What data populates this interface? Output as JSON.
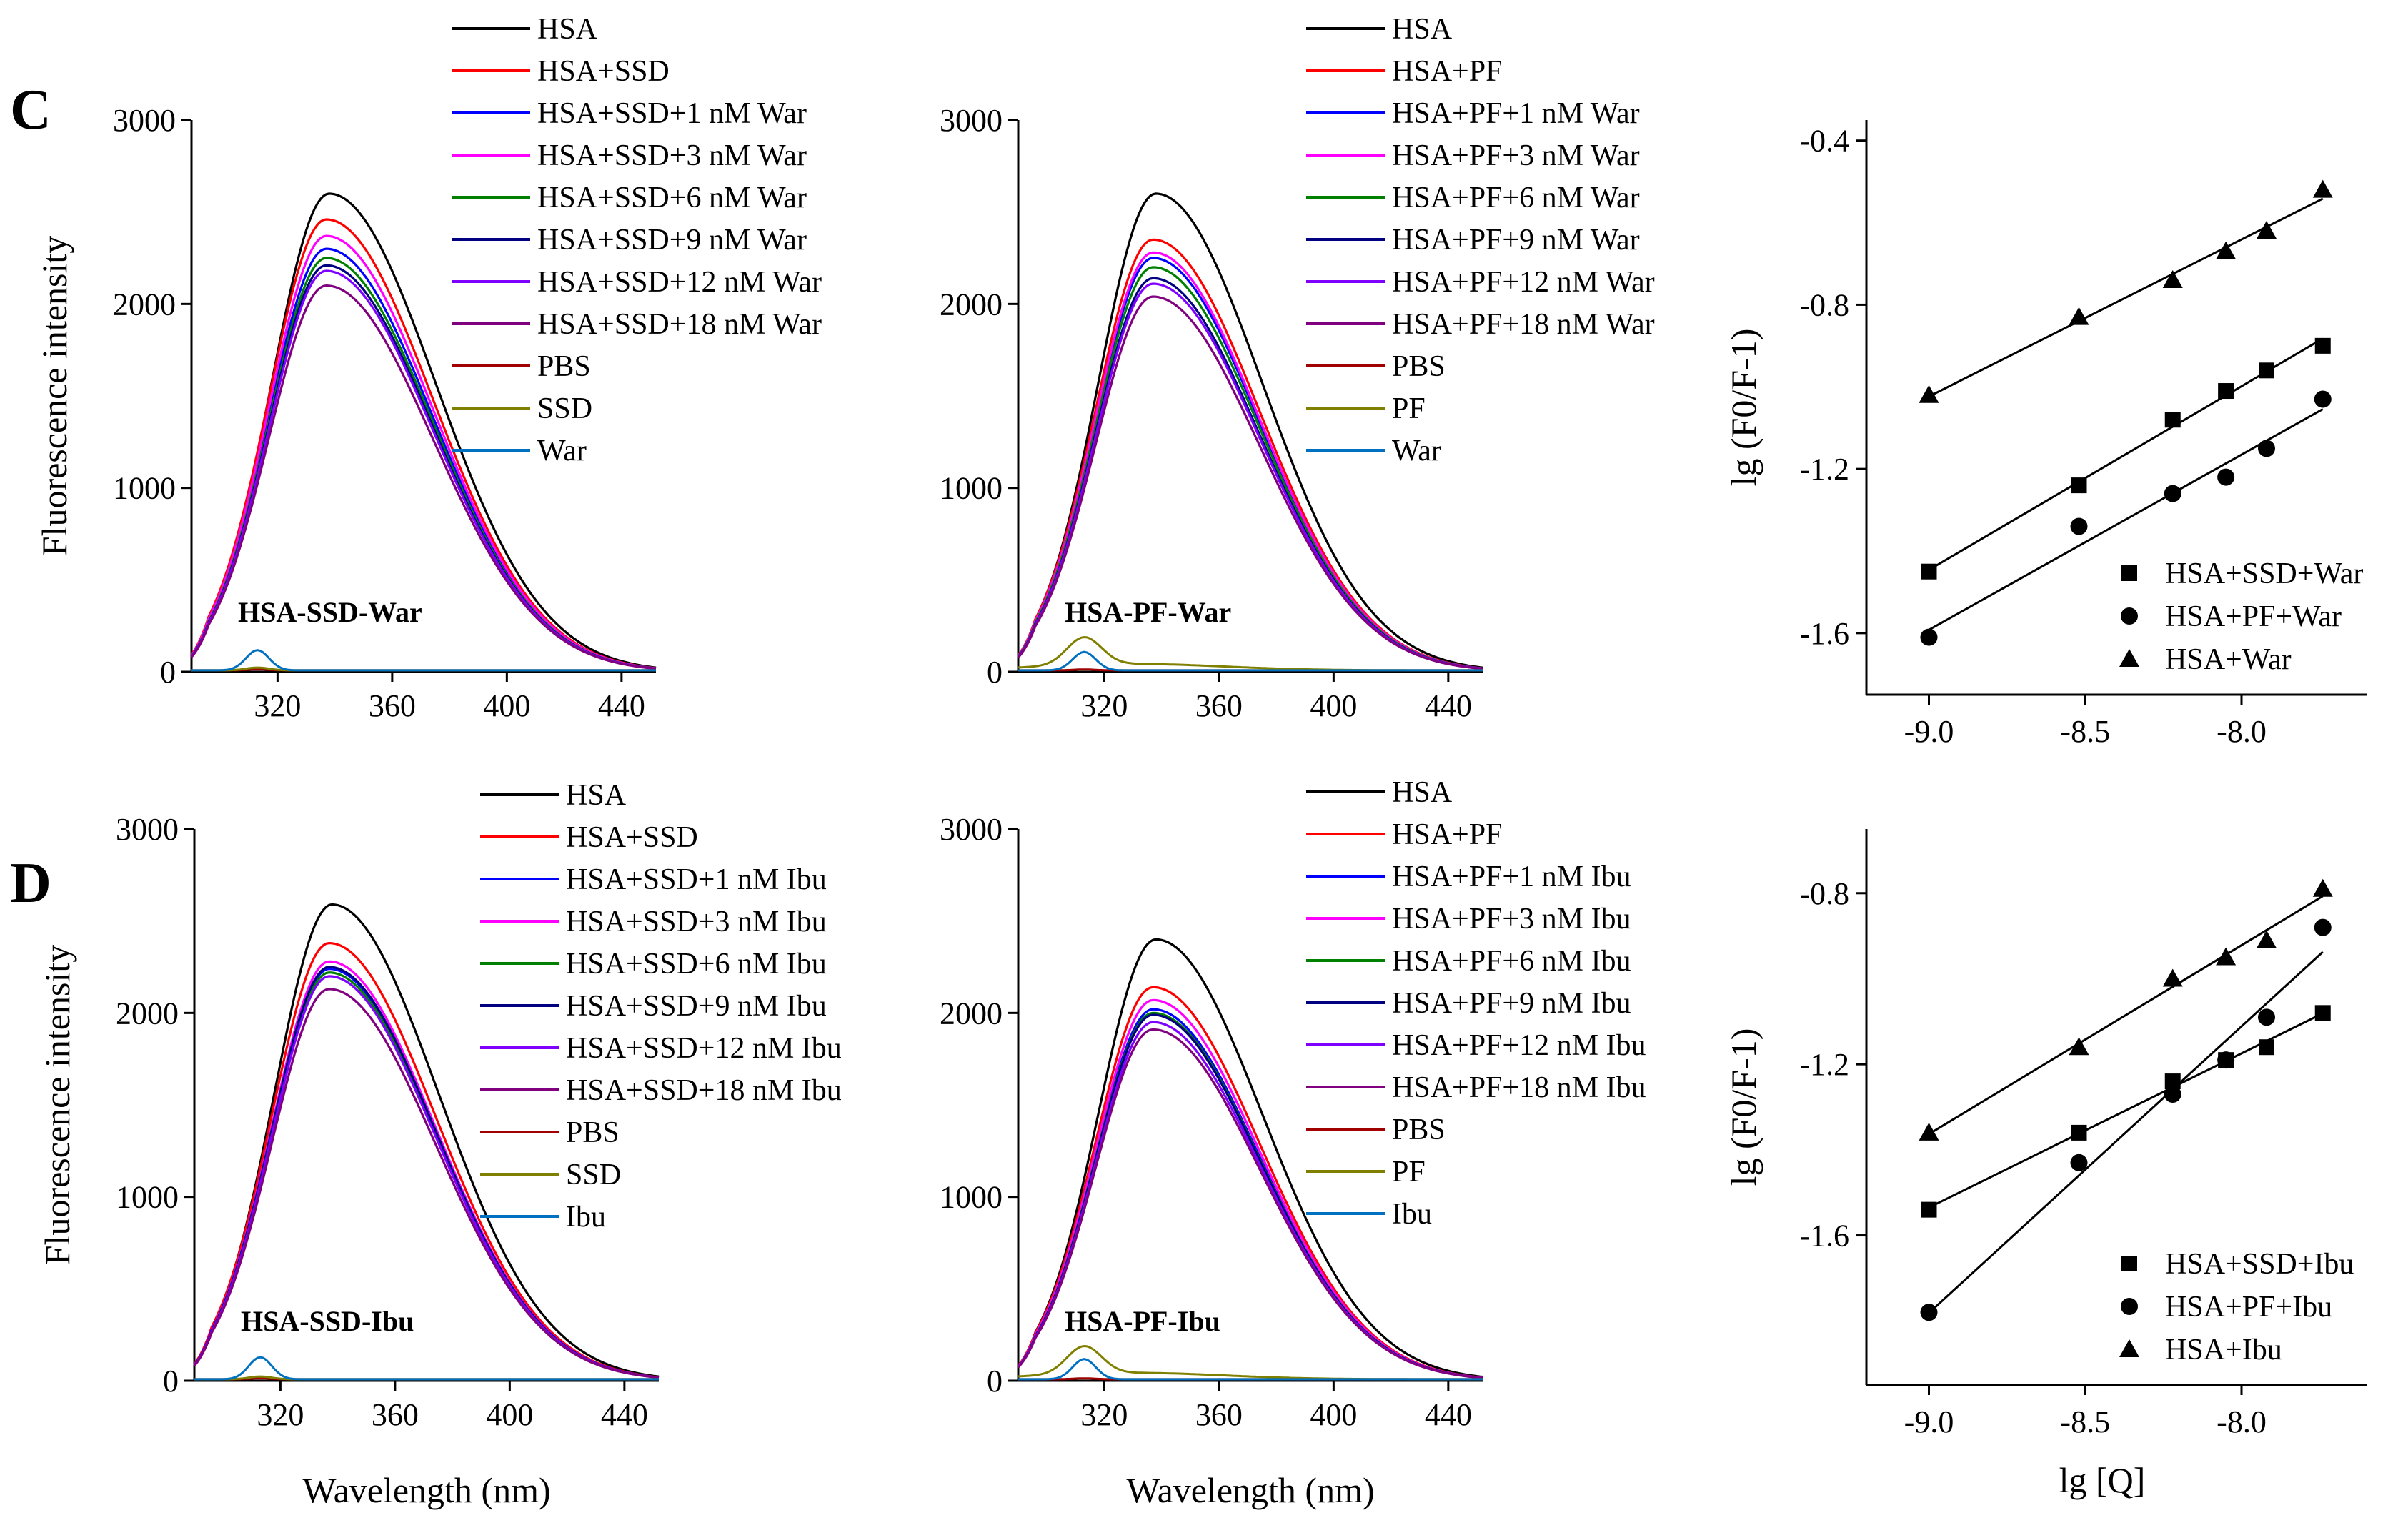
{
  "figure": {
    "panel_letters": [
      "C",
      "D"
    ]
  },
  "chart_data": [
    {
      "id": "C1",
      "type": "line",
      "inset_label": "HSA-SSD-War",
      "ylabel": "Fluorescence intensity",
      "xlabel": "",
      "xlim": [
        290,
        452
      ],
      "ylim": [
        0,
        3000
      ],
      "x_ticks": [
        320,
        360,
        400,
        440
      ],
      "y_ticks": [
        0,
        1000,
        2000,
        3000
      ],
      "colors": [
        "#000000",
        "#ff0000",
        "#0000ff",
        "#ff00ff",
        "#008000",
        "#000080",
        "#8000ff",
        "#800080",
        "#a00000",
        "#808000",
        "#0070c0"
      ],
      "legend": [
        "HSA",
        "HSA+SSD",
        "HSA+SSD+1 nM War",
        "HSA+SSD+3 nM War",
        "HSA+SSD+6 nM War",
        "HSA+SSD+9 nM War",
        "HSA+SSD+12 nM War",
        "HSA+SSD+18 nM War",
        "PBS",
        "SSD",
        "War"
      ],
      "spectrum_peaks": [
        2600,
        2460,
        2300,
        2370,
        2250,
        2210,
        2180,
        2100
      ],
      "baseline_peaks": [
        5,
        15,
        110
      ],
      "baseline_peak_x": 313
    },
    {
      "id": "C2",
      "type": "line",
      "inset_label": "HSA-PF-War",
      "ylabel": "",
      "xlabel": "",
      "xlim": [
        290,
        452
      ],
      "ylim": [
        0,
        3000
      ],
      "x_ticks": [
        320,
        360,
        400,
        440
      ],
      "y_ticks": [
        0,
        1000,
        2000,
        3000
      ],
      "colors": [
        "#000000",
        "#ff0000",
        "#0000ff",
        "#ff00ff",
        "#008000",
        "#000080",
        "#8000ff",
        "#800080",
        "#a00000",
        "#808000",
        "#0070c0"
      ],
      "legend": [
        "HSA",
        "HSA+PF",
        "HSA+PF+1 nM War",
        "HSA+PF+3 nM War",
        "HSA+PF+6 nM War",
        "HSA+PF+9 nM War",
        "HSA+PF+12 nM War",
        "HSA+PF+18 nM War",
        "PBS",
        "PF",
        "War"
      ],
      "spectrum_peaks": [
        2600,
        2350,
        2250,
        2280,
        2200,
        2140,
        2110,
        2040
      ],
      "baseline_peaks": [
        5,
        150,
        100
      ],
      "baseline_peak_x": 313
    },
    {
      "id": "C3",
      "type": "scatter",
      "ylabel": "lg (F0/F-1)",
      "xlabel": "",
      "xlim": [
        -9.2,
        -7.6
      ],
      "ylim": [
        -1.75,
        -0.35
      ],
      "x_ticks": [
        "-9.0",
        "-8.5",
        "-8.0"
      ],
      "y_ticks": [
        "-1.6",
        "-1.2",
        "-0.8",
        "-0.4"
      ],
      "x": [
        -9.0,
        -8.52,
        -8.22,
        -8.05,
        -7.92,
        -7.74
      ],
      "series": [
        {
          "name": "HSA+SSD+War",
          "marker": "square",
          "values": [
            -1.45,
            -1.24,
            -1.08,
            -1.01,
            -0.96,
            -0.9
          ]
        },
        {
          "name": "HSA+PF+War",
          "marker": "circle",
          "values": [
            -1.61,
            -1.34,
            -1.26,
            -1.22,
            -1.15,
            -1.03
          ]
        },
        {
          "name": "HSA+War",
          "marker": "triangle",
          "values": [
            -1.02,
            -0.83,
            -0.74,
            -0.67,
            -0.62,
            -0.52
          ]
        }
      ],
      "legend_position": "bottom-right"
    },
    {
      "id": "D1",
      "type": "line",
      "inset_label": "HSA-SSD-Ibu",
      "ylabel": "Fluorescence intensity",
      "xlabel": "Wavelength (nm)",
      "xlim": [
        290,
        452
      ],
      "ylim": [
        0,
        3000
      ],
      "x_ticks": [
        320,
        360,
        400,
        440
      ],
      "y_ticks": [
        0,
        1000,
        2000,
        3000
      ],
      "colors": [
        "#000000",
        "#ff0000",
        "#0000ff",
        "#ff00ff",
        "#008000",
        "#000080",
        "#8000ff",
        "#800080",
        "#a00000",
        "#808000",
        "#0070c0"
      ],
      "legend": [
        "HSA",
        "HSA+SSD",
        "HSA+SSD+1 nM Ibu",
        "HSA+SSD+3 nM Ibu",
        "HSA+SSD+6 nM Ibu",
        "HSA+SSD+9 nM Ibu",
        "HSA+SSD+12 nM Ibu",
        "HSA+SSD+18 nM Ibu",
        "PBS",
        "SSD",
        "Ibu"
      ],
      "spectrum_peaks": [
        2590,
        2380,
        2240,
        2280,
        2220,
        2250,
        2200,
        2130
      ],
      "baseline_peaks": [
        5,
        15,
        120
      ],
      "baseline_peak_x": 313
    },
    {
      "id": "D2",
      "type": "line",
      "inset_label": "HSA-PF-Ibu",
      "ylabel": "",
      "xlabel": "Wavelength (nm)",
      "xlim": [
        290,
        452
      ],
      "ylim": [
        0,
        3000
      ],
      "x_ticks": [
        320,
        360,
        400,
        440
      ],
      "y_ticks": [
        0,
        1000,
        2000,
        3000
      ],
      "colors": [
        "#000000",
        "#ff0000",
        "#0000ff",
        "#ff00ff",
        "#008000",
        "#000080",
        "#8000ff",
        "#800080",
        "#a00000",
        "#808000",
        "#0070c0"
      ],
      "legend": [
        "HSA",
        "HSA+PF",
        "HSA+PF+1 nM Ibu",
        "HSA+PF+3 nM Ibu",
        "HSA+PF+6 nM Ibu",
        "HSA+PF+9 nM Ibu",
        "HSA+PF+12 nM Ibu",
        "HSA+PF+18 nM Ibu",
        "PBS",
        "PF",
        "Ibu"
      ],
      "spectrum_peaks": [
        2400,
        2140,
        2020,
        2070,
        2000,
        1990,
        1950,
        1910
      ],
      "baseline_peaks": [
        5,
        150,
        110
      ],
      "baseline_peak_x": 313
    },
    {
      "id": "D3",
      "type": "scatter",
      "ylabel": "lg (F0/F-1)",
      "xlabel": "lg [Q]",
      "xlim": [
        -9.2,
        -7.6
      ],
      "ylim": [
        -1.95,
        -0.65
      ],
      "x_ticks": [
        "-9.0",
        "-8.5",
        "-8.0"
      ],
      "y_ticks": [
        "-1.6",
        "-1.2",
        "-0.8"
      ],
      "x": [
        -9.0,
        -8.52,
        -8.22,
        -8.05,
        -7.92,
        -7.74
      ],
      "series": [
        {
          "name": "HSA+SSD+Ibu",
          "marker": "square",
          "values": [
            -1.54,
            -1.36,
            -1.24,
            -1.19,
            -1.16,
            -1.08
          ]
        },
        {
          "name": "HSA+PF+Ibu",
          "marker": "circle",
          "values": [
            -1.78,
            -1.43,
            -1.27,
            -1.19,
            -1.09,
            -0.88
          ]
        },
        {
          "name": "HSA+Ibu",
          "marker": "triangle",
          "values": [
            -1.36,
            -1.16,
            -1.0,
            -0.95,
            -0.91,
            -0.79
          ]
        }
      ],
      "legend_position": "bottom-right"
    }
  ]
}
